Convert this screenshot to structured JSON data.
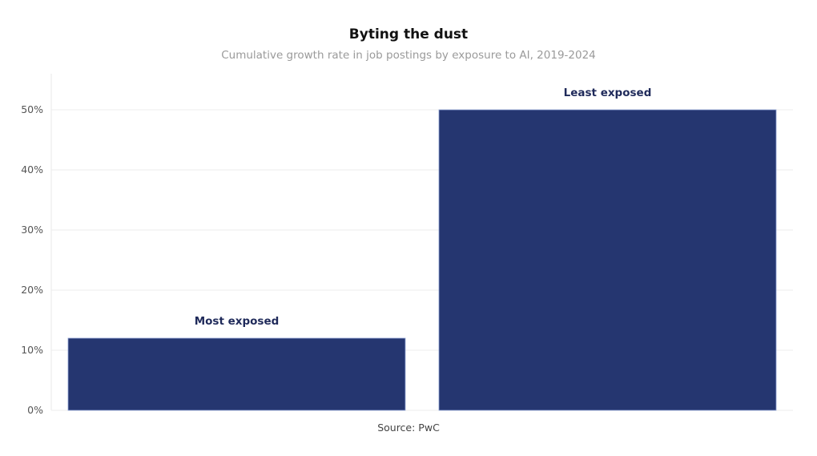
{
  "chart_data": {
    "type": "bar",
    "title": "Byting the dust",
    "subtitle": "Cumulative growth rate in job postings by exposure to AI, 2019-2024",
    "categories": [
      "Most exposed",
      "Least exposed"
    ],
    "values": [
      12,
      50
    ],
    "xlabel": "",
    "ylabel": "",
    "ylim": [
      0,
      56
    ],
    "yticks": [
      0,
      10,
      20,
      30,
      40,
      50
    ],
    "ytick_labels": [
      "0%",
      "10%",
      "20%",
      "30%",
      "40%",
      "50%"
    ],
    "grid": true,
    "bar_color": "#253670",
    "source": "Source: PwC"
  }
}
